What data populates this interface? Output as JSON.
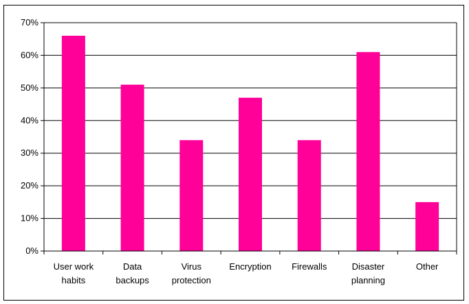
{
  "chart_data": {
    "type": "bar",
    "categories": [
      [
        "User work",
        "habits"
      ],
      [
        "Data",
        "backups"
      ],
      [
        "Virus",
        "protection"
      ],
      [
        "Encryption"
      ],
      [
        "Firewalls"
      ],
      [
        "Disaster",
        "planning"
      ],
      [
        "Other"
      ]
    ],
    "values": [
      66,
      51,
      34,
      47,
      34,
      61,
      15
    ],
    "ylim": [
      0,
      70
    ],
    "yticks": [
      0,
      10,
      20,
      30,
      40,
      50,
      60,
      70
    ],
    "ytick_labels": [
      "0%",
      "10%",
      "20%",
      "30%",
      "40%",
      "50%",
      "60%",
      "70%"
    ],
    "bar_color": "#ff0099",
    "grid": true,
    "title": "",
    "xlabel": "",
    "ylabel": ""
  }
}
